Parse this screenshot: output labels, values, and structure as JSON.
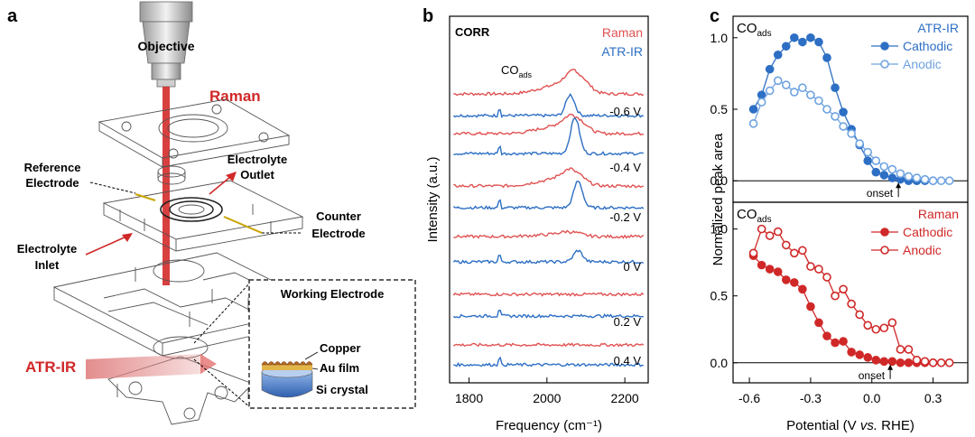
{
  "panels": {
    "a": {
      "letter": "a",
      "labels": {
        "objective": "Objective",
        "raman": "Raman",
        "reference": "Reference",
        "electrode1": "Electrode",
        "electrolyte_out1": "Electrolyte",
        "outlet": "Outlet",
        "counter": "Counter",
        "electrode2": "Electrode",
        "electrolyte_in1": "Electrolyte",
        "inlet": "Inlet",
        "atr": "ATR-IR",
        "working_electrode": "Working Electrode",
        "copper": "Copper",
        "au_film": "Au film",
        "si_crystal": "Si crystal"
      }
    },
    "b": {
      "letter": "b"
    },
    "c": {
      "letter": "c"
    }
  },
  "colors": {
    "raman": "#e05252",
    "atr": "#2d6fc4",
    "atr_light": "#6fa3e0",
    "raman_dark": "#d02828"
  },
  "chart_data": [
    {
      "type": "line",
      "panel": "b",
      "title": "CORR",
      "xlabel": "Frequency (cm⁻¹)",
      "ylabel": "Intensity (a.u.)",
      "xlim": [
        1750,
        2260
      ],
      "xticks": [
        1800,
        2000,
        2200
      ],
      "legend": [
        "Raman",
        "ATR-IR"
      ],
      "legend_position": "top-right",
      "annotation_main": "CO",
      "annotation_sub": "ads",
      "potentials": [
        "-0.6 V",
        "-0.4 V",
        "-0.2 V",
        "0 V",
        "0.2 V",
        "0.4 V"
      ],
      "series": [
        {
          "name": "Raman",
          "potential": "-0.6 V",
          "peak_center": 2075,
          "peak_height": 0.55,
          "broad": true
        },
        {
          "name": "ATR-IR",
          "potential": "-0.6 V",
          "peak_center": 2060,
          "peak_height": 0.55
        },
        {
          "name": "Raman",
          "potential": "-0.4 V",
          "peak_center": 2070,
          "peak_height": 0.45,
          "broad": true
        },
        {
          "name": "ATR-IR",
          "potential": "-0.4 V",
          "peak_center": 2072,
          "peak_height": 0.95
        },
        {
          "name": "Raman",
          "potential": "-0.2 V",
          "peak_center": 2065,
          "peak_height": 0.4,
          "broad": true
        },
        {
          "name": "ATR-IR",
          "potential": "-0.2 V",
          "peak_center": 2080,
          "peak_height": 0.7
        },
        {
          "name": "Raman",
          "potential": "0 V",
          "peak_center": 2060,
          "peak_height": 0.12,
          "broad": true
        },
        {
          "name": "ATR-IR",
          "potential": "0 V",
          "peak_center": 2080,
          "peak_height": 0.3
        },
        {
          "name": "Raman",
          "potential": "0.2 V",
          "peak_center": 2060,
          "peak_height": 0.0
        },
        {
          "name": "ATR-IR",
          "potential": "0.2 V",
          "peak_center": 2080,
          "peak_height": 0.0
        },
        {
          "name": "Raman",
          "potential": "0.4 V",
          "peak_center": 2060,
          "peak_height": 0.0
        },
        {
          "name": "ATR-IR",
          "potential": "0.4 V",
          "peak_center": 2080,
          "peak_height": 0.0
        }
      ]
    },
    {
      "type": "line",
      "panel": "c-top",
      "corner_label_main": "CO",
      "corner_label_sub": "ads",
      "legend_title": "ATR-IR",
      "legend_position": "top-right",
      "xlim": [
        -0.68,
        0.47
      ],
      "ylim": [
        -0.15,
        1.15
      ],
      "yticks": [
        0.0,
        0.5,
        1.0
      ],
      "onset_label": "onset",
      "onset_x": 0.13,
      "series": [
        {
          "name": "Cathodic",
          "filled": true,
          "x": [
            -0.58,
            -0.54,
            -0.5,
            -0.46,
            -0.42,
            -0.38,
            -0.34,
            -0.3,
            -0.26,
            -0.22,
            -0.18,
            -0.14,
            -0.1,
            -0.06,
            -0.02,
            0.02,
            0.06,
            0.1,
            0.14,
            0.18,
            0.22,
            0.26,
            0.3
          ],
          "y": [
            0.5,
            0.6,
            0.78,
            0.88,
            0.94,
            1.0,
            0.97,
            1.0,
            0.97,
            0.86,
            0.65,
            0.48,
            0.36,
            0.25,
            0.14,
            0.06,
            0.04,
            0.02,
            0.01,
            0.0,
            0.0,
            0.0,
            0.0
          ]
        },
        {
          "name": "Anodic",
          "filled": false,
          "x": [
            -0.58,
            -0.54,
            -0.5,
            -0.46,
            -0.42,
            -0.38,
            -0.34,
            -0.3,
            -0.26,
            -0.22,
            -0.18,
            -0.14,
            -0.1,
            -0.06,
            -0.02,
            0.02,
            0.06,
            0.1,
            0.14,
            0.18,
            0.22,
            0.26,
            0.3,
            0.34,
            0.38
          ],
          "y": [
            0.4,
            0.55,
            0.63,
            0.7,
            0.67,
            0.62,
            0.65,
            0.6,
            0.56,
            0.5,
            0.45,
            0.38,
            0.33,
            0.26,
            0.2,
            0.14,
            0.1,
            0.08,
            0.05,
            0.03,
            0.02,
            0.01,
            0.0,
            0.0,
            0.0
          ]
        }
      ]
    },
    {
      "type": "line",
      "panel": "c-bottom",
      "corner_label_main": "CO",
      "corner_label_sub": "ads",
      "legend_title": "Raman",
      "legend_position": "top-right",
      "xlabel": "Potential (V vs. RHE)",
      "xlabel_parts": [
        "Potential (V ",
        "vs.",
        " RHE)"
      ],
      "shared_ylabel": "Normalized peak area",
      "xlim": [
        -0.68,
        0.47
      ],
      "ylim": [
        -0.15,
        1.2
      ],
      "xticks": [
        -0.6,
        -0.3,
        0.0,
        0.3
      ],
      "xtick_labels": [
        "-0.6",
        "-0.3",
        "0.0",
        "0.3"
      ],
      "yticks": [
        0.0,
        0.5,
        1.0
      ],
      "onset_label": "onset",
      "onset_x": 0.09,
      "series": [
        {
          "name": "Cathodic",
          "filled": true,
          "x": [
            -0.58,
            -0.54,
            -0.5,
            -0.46,
            -0.42,
            -0.38,
            -0.34,
            -0.3,
            -0.26,
            -0.22,
            -0.18,
            -0.14,
            -0.1,
            -0.06,
            -0.02,
            0.02,
            0.06,
            0.1,
            0.14,
            0.18,
            0.22,
            0.26,
            0.3
          ],
          "y": [
            0.8,
            0.73,
            0.7,
            0.68,
            0.62,
            0.6,
            0.55,
            0.42,
            0.3,
            0.2,
            0.15,
            0.16,
            0.08,
            0.06,
            0.04,
            0.02,
            0.01,
            0.01,
            0.0,
            0.0,
            0.0,
            0.0,
            0.0
          ]
        },
        {
          "name": "Anodic",
          "filled": false,
          "x": [
            -0.58,
            -0.54,
            -0.5,
            -0.46,
            -0.42,
            -0.38,
            -0.34,
            -0.3,
            -0.26,
            -0.22,
            -0.18,
            -0.14,
            -0.1,
            -0.06,
            -0.02,
            0.02,
            0.06,
            0.1,
            0.14,
            0.18,
            0.22,
            0.26,
            0.3,
            0.34,
            0.38
          ],
          "y": [
            0.82,
            1.0,
            0.95,
            0.98,
            0.88,
            0.82,
            0.84,
            0.72,
            0.7,
            0.64,
            0.5,
            0.55,
            0.44,
            0.36,
            0.28,
            0.25,
            0.26,
            0.3,
            0.1,
            0.1,
            0.02,
            0.01,
            0.0,
            0.0,
            0.0
          ]
        }
      ]
    }
  ]
}
